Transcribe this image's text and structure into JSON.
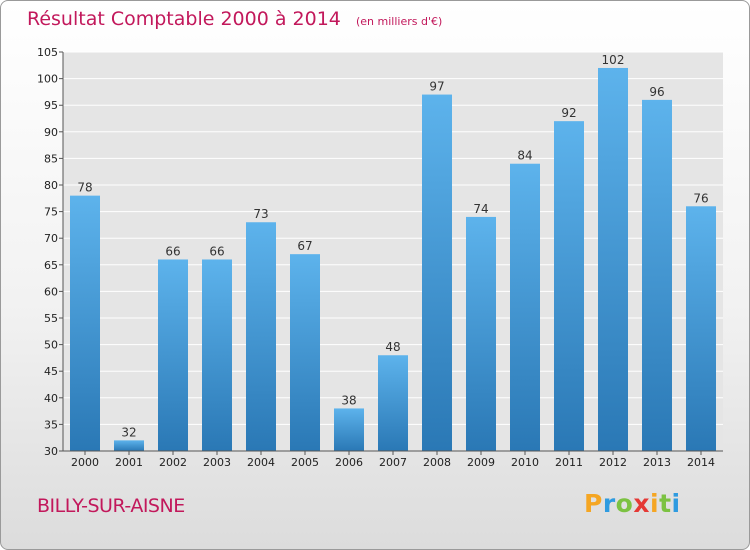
{
  "title": "Résultat Comptable 2000 à 2014",
  "unit_note": "(en milliers d'€)",
  "commune": "BILLY-SUR-AISNE",
  "logo": {
    "text": "Proxiti",
    "letters": [
      "P",
      "r",
      "o",
      "x",
      "i",
      "t",
      "i"
    ],
    "colors": [
      "#f5a623",
      "#2e9be0",
      "#7cc242",
      "#e53935",
      "#f5a623",
      "#7cc242",
      "#2e9be0"
    ]
  },
  "colors": {
    "accent": "#c2185b",
    "bar_top": "#5db3ec",
    "bar_bottom": "#2a78b5",
    "grid": "#ffffff",
    "plot_bg": "#e5e5e5"
  },
  "chart_data": {
    "type": "bar",
    "title": "Résultat Comptable 2000 à 2014",
    "xlabel": "",
    "ylabel": "",
    "categories": [
      "2000",
      "2001",
      "2002",
      "2003",
      "2004",
      "2005",
      "2006",
      "2007",
      "2008",
      "2009",
      "2010",
      "2011",
      "2012",
      "2013",
      "2014"
    ],
    "values": [
      78,
      32,
      66,
      66,
      73,
      67,
      38,
      48,
      97,
      74,
      84,
      92,
      102,
      96,
      76
    ],
    "ylim": [
      30,
      105
    ],
    "yticks": [
      30,
      35,
      40,
      45,
      50,
      55,
      60,
      65,
      70,
      75,
      80,
      85,
      90,
      95,
      100,
      105
    ],
    "grid": true,
    "data_labels": true
  }
}
